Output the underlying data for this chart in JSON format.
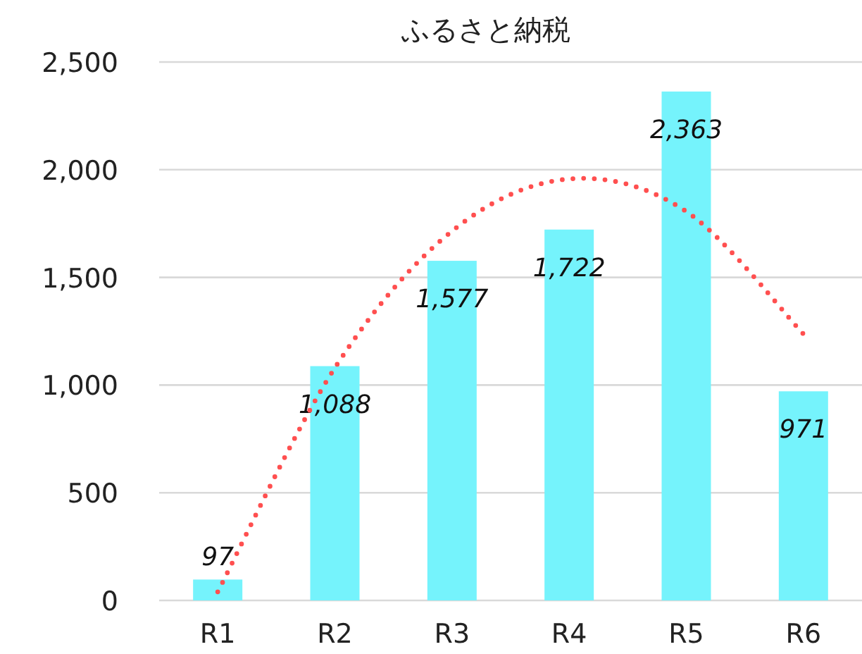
{
  "chart_data": {
    "type": "bar",
    "title": "ふるさと納税",
    "categories": [
      "R1",
      "R2",
      "R3",
      "R4",
      "R5",
      "R6"
    ],
    "ylim": [
      0,
      2500
    ],
    "yticks": [
      {
        "value": 0,
        "label": "0"
      },
      {
        "value": 500,
        "label": "500"
      },
      {
        "value": 1000,
        "label": "1,000"
      },
      {
        "value": 1500,
        "label": "1,500"
      },
      {
        "value": 2000,
        "label": "2,000"
      },
      {
        "value": 2500,
        "label": "2,500"
      }
    ],
    "grid": "y",
    "series": [
      {
        "color": "#75f3fc",
        "values": [
          97,
          1088,
          1577,
          1722,
          2363,
          971
        ],
        "value_labels": [
          "97",
          "1,088",
          "1,577",
          "1,722",
          "2,363",
          "971"
        ]
      },
      {
        "type": "line",
        "color": "#ff4f4f",
        "line_style": "dotted",
        "marker": "none",
        "x": [
          "R1",
          "R2",
          "R3",
          "R4",
          "R5",
          "R6"
        ],
        "values": [
          40,
          1080,
          1715,
          1957,
          1806,
          1237
        ]
      }
    ]
  }
}
